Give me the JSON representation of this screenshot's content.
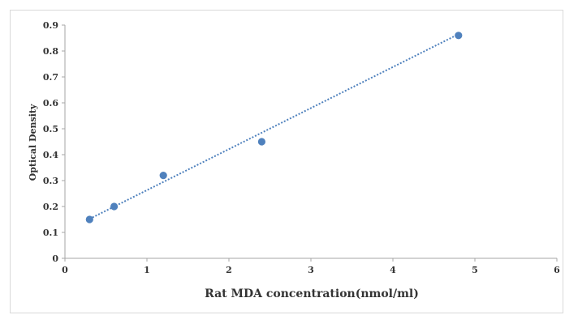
{
  "chart_data": {
    "type": "scatter",
    "title": "",
    "xlabel": "Rat MDA concentration(nmol/ml)",
    "ylabel": "Optical Density",
    "xlim": [
      0,
      6
    ],
    "ylim": [
      0,
      0.9
    ],
    "x_ticks": [
      "0",
      "1",
      "2",
      "3",
      "4",
      "5",
      "6"
    ],
    "y_ticks": [
      "0",
      "0.1",
      "0.2",
      "0.3",
      "0.4",
      "0.5",
      "0.6",
      "0.7",
      "0.8",
      "0.9"
    ],
    "grid": false,
    "legend": "none",
    "series": [
      {
        "points": [
          {
            "x": 0.3,
            "y": 0.15
          },
          {
            "x": 0.6,
            "y": 0.2
          },
          {
            "x": 1.2,
            "y": 0.32
          },
          {
            "x": 2.4,
            "y": 0.45
          },
          {
            "x": 4.8,
            "y": 0.86
          }
        ],
        "marker_color": "#4f81bd"
      }
    ],
    "trendline": {
      "style": "dotted",
      "color": "#4f81bd",
      "from": {
        "x": 0.3,
        "y": 0.152
      },
      "to": {
        "x": 4.8,
        "y": 0.865
      }
    }
  }
}
